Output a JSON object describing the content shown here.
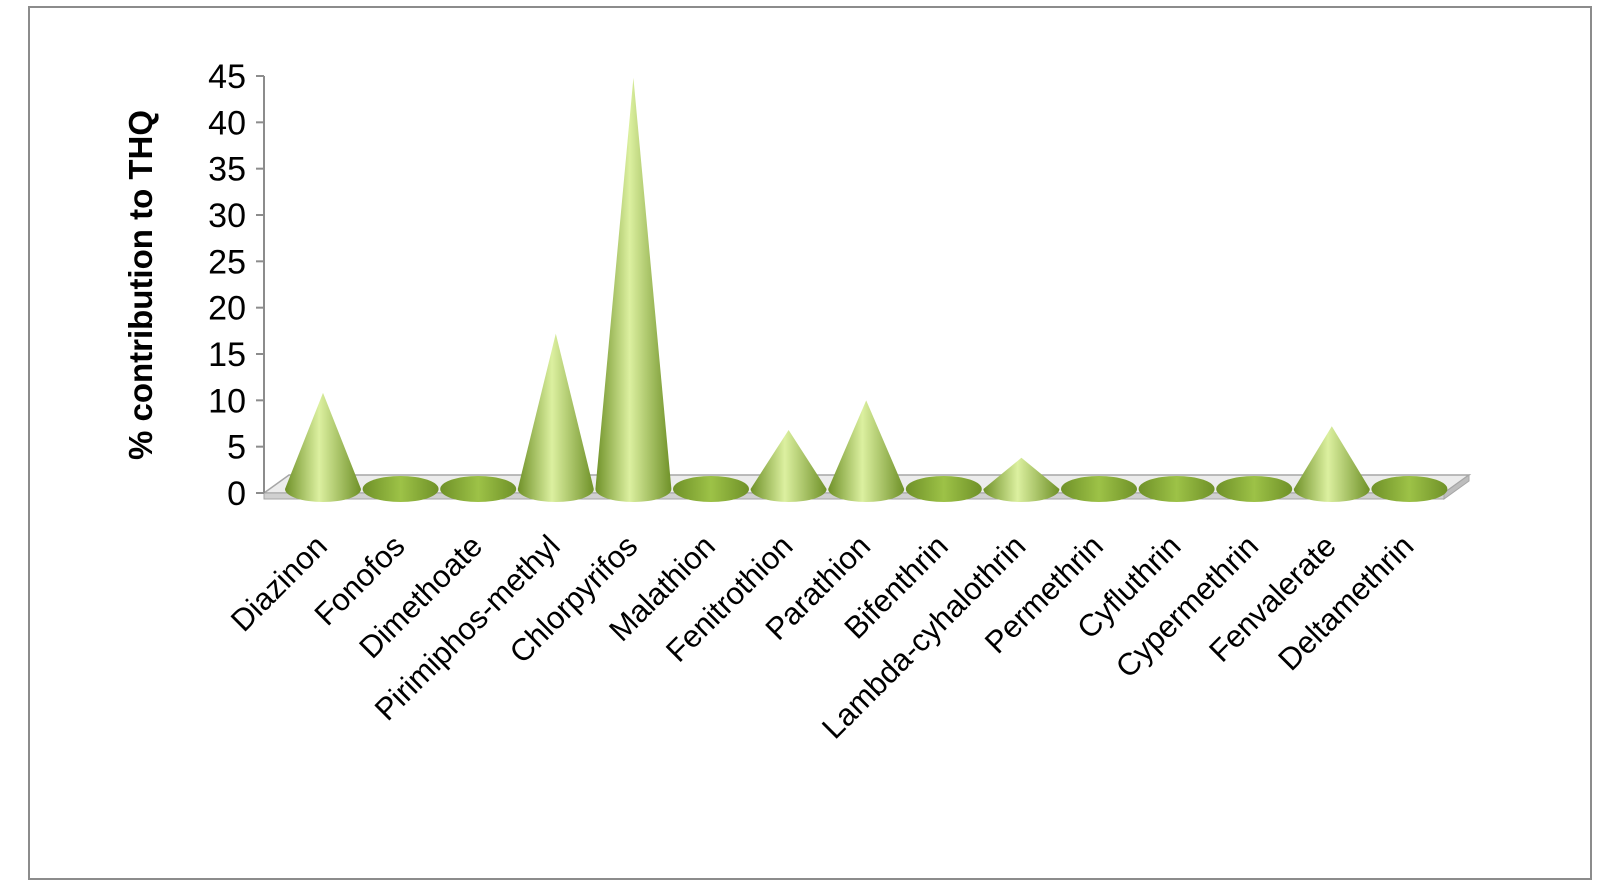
{
  "chart_data": {
    "type": "bar",
    "style": "3d-cone",
    "title": "",
    "xlabel": "",
    "ylabel": "% contribution to THQ",
    "ylim": [
      0,
      45
    ],
    "yticks": [
      "0",
      "5",
      "10",
      "15",
      "20",
      "25",
      "30",
      "35",
      "40",
      "45"
    ],
    "grid": false,
    "legend": "none",
    "bar_color": "#9dc247",
    "bar_highlight": "#dcf0a0",
    "bar_shade": "#6f9128",
    "categories": [
      "Diazinon",
      "Fonofos",
      "Dimethoate",
      "Pirimiphos-methyl",
      "Chlorpyrifos",
      "Malathion",
      "Fenitrothion",
      "Parathion",
      "Bifenthrin",
      "Lambda-cyhalothrin",
      "Permethrin",
      "Cyfluthrin",
      "Cypermethrin",
      "Fenvalerate",
      "Deltamethrin"
    ],
    "values": [
      10.8,
      0.1,
      0.2,
      17.2,
      44.8,
      0.1,
      6.8,
      10.0,
      0.1,
      3.8,
      0.1,
      0.1,
      0.1,
      7.2,
      0.1
    ]
  }
}
